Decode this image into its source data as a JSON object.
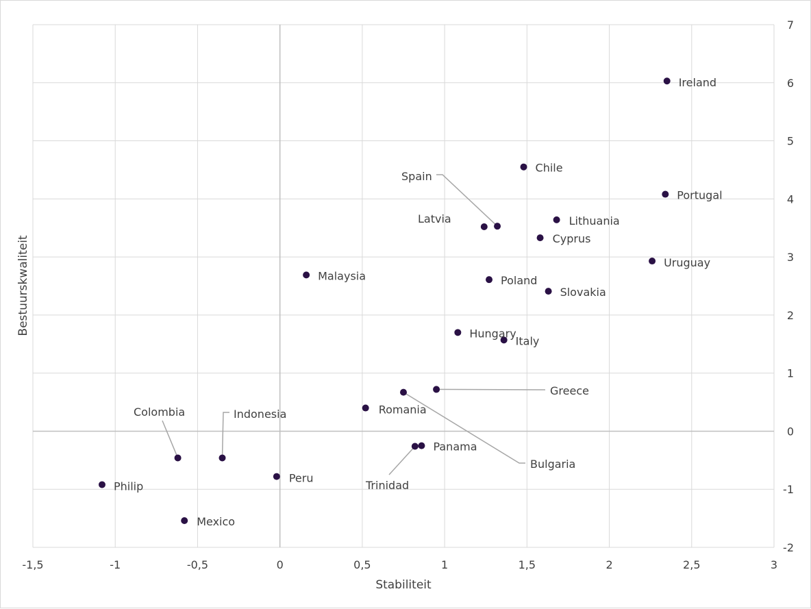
{
  "chart_data": {
    "type": "scatter",
    "title": "",
    "xlabel": "Stabiliteit",
    "ylabel": "Bestuurskwaliteit",
    "xlim": [
      -1.5,
      3
    ],
    "ylim": [
      -2,
      7
    ],
    "grid": true,
    "marker_color": "#2a1145",
    "x_tick_labels": [
      "-1,5",
      "-1",
      "-0,5",
      "0",
      "0,5",
      "1",
      "1,5",
      "2",
      "2,5",
      "3"
    ],
    "y_tick_labels": [
      "-2",
      "-1",
      "0",
      "1",
      "2",
      "3",
      "4",
      "5",
      "6",
      "7"
    ],
    "points": [
      {
        "label": "Ireland",
        "x": 2.35,
        "y": 6.03
      },
      {
        "label": "Chile",
        "x": 1.48,
        "y": 4.55
      },
      {
        "label": "Portugal",
        "x": 2.34,
        "y": 4.08
      },
      {
        "label": "Spain",
        "x": 1.32,
        "y": 3.53
      },
      {
        "label": "Latvia",
        "x": 1.24,
        "y": 3.52
      },
      {
        "label": "Lithuania",
        "x": 1.68,
        "y": 3.64
      },
      {
        "label": "Cyprus",
        "x": 1.58,
        "y": 3.33
      },
      {
        "label": "Uruguay",
        "x": 2.26,
        "y": 2.93
      },
      {
        "label": "Malaysia",
        "x": 0.16,
        "y": 2.69
      },
      {
        "label": "Poland",
        "x": 1.27,
        "y": 2.61
      },
      {
        "label": "Slovakia",
        "x": 1.63,
        "y": 2.41
      },
      {
        "label": "Hungary",
        "x": 1.08,
        "y": 1.7
      },
      {
        "label": "Italy",
        "x": 1.36,
        "y": 1.57
      },
      {
        "label": "Greece",
        "x": 0.95,
        "y": 0.72
      },
      {
        "label": "Bulgaria",
        "x": 0.75,
        "y": 0.67
      },
      {
        "label": "Romania",
        "x": 0.52,
        "y": 0.4
      },
      {
        "label": "Colombia",
        "x": -0.62,
        "y": -0.46
      },
      {
        "label": "Indonesia",
        "x": -0.35,
        "y": -0.46
      },
      {
        "label": "Panama",
        "x": 0.86,
        "y": -0.25
      },
      {
        "label": "Trinidad",
        "x": 0.82,
        "y": -0.26
      },
      {
        "label": "Peru",
        "x": -0.02,
        "y": -0.78
      },
      {
        "label": "Philip",
        "x": -1.08,
        "y": -0.92
      },
      {
        "label": "Mexico",
        "x": -0.58,
        "y": -1.54
      }
    ]
  }
}
